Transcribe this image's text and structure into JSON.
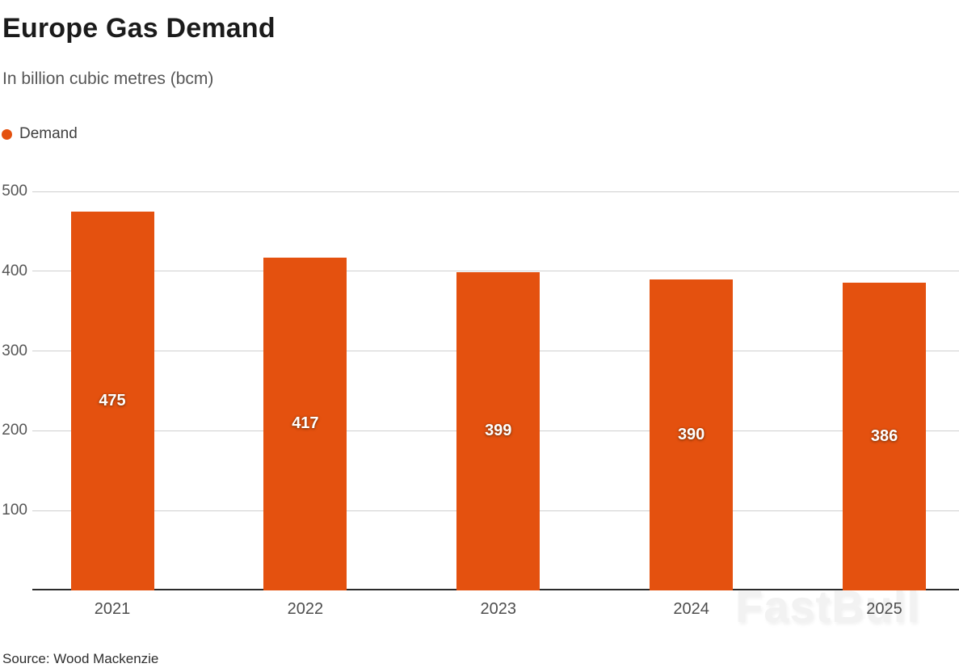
{
  "header": {
    "title": "Europe Gas Demand",
    "subtitle": "In billion cubic metres (bcm)"
  },
  "legend": {
    "label": "Demand",
    "color": "#E4510F"
  },
  "chart_data": {
    "type": "bar",
    "title": "Europe Gas Demand",
    "subtitle": "In billion cubic metres (bcm)",
    "series_name": "Demand",
    "categories": [
      "2021",
      "2022",
      "2023",
      "2024",
      "2025"
    ],
    "values": [
      475,
      417,
      399,
      390,
      386
    ],
    "ylim": [
      0,
      500
    ],
    "yticks": [
      100,
      200,
      300,
      400,
      500
    ],
    "bar_color": "#E4510F",
    "grid": "horizontal",
    "value_labels": "inside-center",
    "legend_position": "top-left"
  },
  "watermark": {
    "text": "FastBull"
  },
  "footer": {
    "source": "Source: Wood Mackenzie"
  }
}
